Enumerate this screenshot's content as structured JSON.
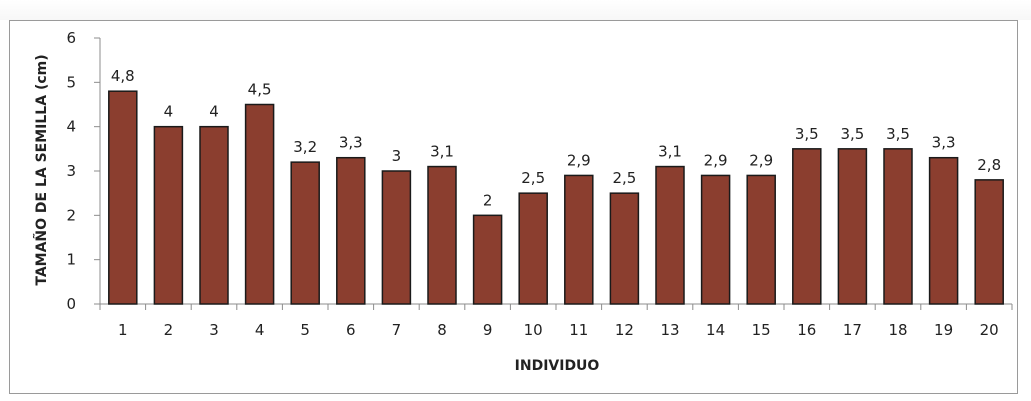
{
  "chart_data": {
    "type": "bar",
    "title": "",
    "xlabel": "INDIVIDUO",
    "ylabel": "TAMAÑO DE LA SEMILLA (cm)",
    "categories": [
      "1",
      "2",
      "3",
      "4",
      "5",
      "6",
      "7",
      "8",
      "9",
      "10",
      "11",
      "12",
      "13",
      "14",
      "15",
      "16",
      "17",
      "18",
      "19",
      "20"
    ],
    "values": [
      4.8,
      4,
      4,
      4.5,
      3.2,
      3.3,
      3,
      3.1,
      2,
      2.5,
      2.9,
      2.5,
      3.1,
      2.9,
      2.9,
      3.5,
      3.5,
      3.5,
      3.3,
      2.8
    ],
    "data_labels": [
      "4,8",
      "4",
      "4",
      "4,5",
      "3,2",
      "3,3",
      "3",
      "3,1",
      "2",
      "2,5",
      "2,9",
      "2,5",
      "3,1",
      "2,9",
      "2,9",
      "3,5",
      "3,5",
      "3,5",
      "3,3",
      "2,8"
    ],
    "ylim": [
      0,
      6
    ],
    "yticks": [
      "0",
      "1",
      "2",
      "3",
      "4",
      "5",
      "6"
    ],
    "grid": false,
    "legend": "none",
    "bar_color": "#8b3e2f",
    "bar_edge_color": "#1a1a1a"
  }
}
